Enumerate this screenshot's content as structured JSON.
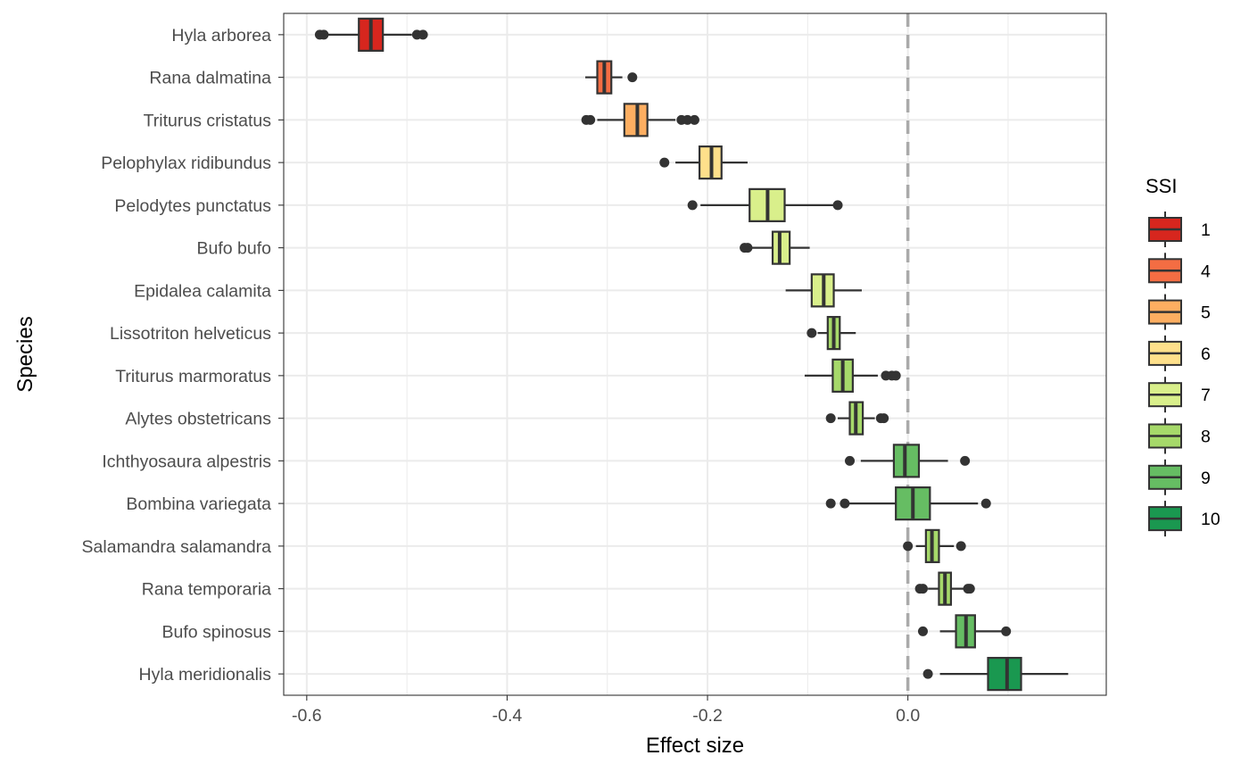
{
  "chart_data": {
    "type": "boxplot",
    "title": "",
    "xlabel": "Effect size",
    "ylabel": "Species",
    "xlim": [
      -0.623,
      0.198
    ],
    "x_ticks": [
      -0.6,
      -0.4,
      -0.2,
      0.0
    ],
    "x_tick_labels": [
      "-0.6",
      "-0.4",
      "-0.2",
      "0.0"
    ],
    "grid": true,
    "reference_line": {
      "x": 0.0,
      "style": "dashed",
      "color": "#aaaaaa"
    },
    "legend": {
      "title": "SSI",
      "position": "right",
      "entries": [
        {
          "label": "1",
          "color": "#d7261e"
        },
        {
          "label": "4",
          "color": "#f46d43"
        },
        {
          "label": "5",
          "color": "#fdae61"
        },
        {
          "label": "6",
          "color": "#fee08b"
        },
        {
          "label": "7",
          "color": "#d9ef8b"
        },
        {
          "label": "8",
          "color": "#a6d96a"
        },
        {
          "label": "9",
          "color": "#66bd63"
        },
        {
          "label": "10",
          "color": "#1a9850"
        }
      ]
    },
    "series": [
      {
        "category": "Hyla meridionalis",
        "ssi": "10",
        "whisker_low": 0.032,
        "q1": 0.08,
        "median": 0.099,
        "q3": 0.113,
        "whisker_high": 0.16,
        "outliers": [
          0.02
        ]
      },
      {
        "category": "Bufo spinosus",
        "ssi": "9",
        "whisker_low": 0.032,
        "q1": 0.048,
        "median": 0.058,
        "q3": 0.067,
        "whisker_high": 0.1,
        "outliers": [
          0.015,
          0.098
        ]
      },
      {
        "category": "Rana temporaria",
        "ssi": "8",
        "whisker_low": 0.02,
        "q1": 0.031,
        "median": 0.037,
        "q3": 0.043,
        "whisker_high": 0.058,
        "outliers": [
          0.012,
          0.015,
          0.06,
          0.062
        ]
      },
      {
        "category": "Salamandra salamandra",
        "ssi": "8",
        "whisker_low": 0.008,
        "q1": 0.018,
        "median": 0.024,
        "q3": 0.031,
        "whisker_high": 0.046,
        "outliers": [
          0.0,
          0.053
        ]
      },
      {
        "category": "Bombina variegata",
        "ssi": "9",
        "whisker_low": -0.06,
        "q1": -0.012,
        "median": 0.005,
        "q3": 0.022,
        "whisker_high": 0.07,
        "outliers": [
          -0.077,
          -0.063,
          0.078
        ]
      },
      {
        "category": "Ichthyosaura alpestris",
        "ssi": "9",
        "whisker_low": -0.047,
        "q1": -0.014,
        "median": -0.003,
        "q3": 0.011,
        "whisker_high": 0.04,
        "outliers": [
          -0.058,
          0.057
        ]
      },
      {
        "category": "Alytes obstetricans",
        "ssi": "8",
        "whisker_low": -0.07,
        "q1": -0.058,
        "median": -0.052,
        "q3": -0.045,
        "whisker_high": -0.033,
        "outliers": [
          -0.077,
          -0.027,
          -0.024
        ]
      },
      {
        "category": "Triturus marmoratus",
        "ssi": "8",
        "whisker_low": -0.103,
        "q1": -0.075,
        "median": -0.065,
        "q3": -0.055,
        "whisker_high": -0.03,
        "outliers": [
          -0.022,
          -0.016,
          -0.012
        ]
      },
      {
        "category": "Lissotriton helveticus",
        "ssi": "8",
        "whisker_low": -0.09,
        "q1": -0.08,
        "median": -0.074,
        "q3": -0.068,
        "whisker_high": -0.052,
        "outliers": [
          -0.096
        ]
      },
      {
        "category": "Epidalea calamita",
        "ssi": "7",
        "whisker_low": -0.122,
        "q1": -0.096,
        "median": -0.084,
        "q3": -0.074,
        "whisker_high": -0.046,
        "outliers": []
      },
      {
        "category": "Bufo bufo",
        "ssi": "7",
        "whisker_low": -0.157,
        "q1": -0.135,
        "median": -0.128,
        "q3": -0.118,
        "whisker_high": -0.098,
        "outliers": [
          -0.163,
          -0.16
        ]
      },
      {
        "category": "Pelodytes punctatus",
        "ssi": "7",
        "whisker_low": -0.207,
        "q1": -0.158,
        "median": -0.14,
        "q3": -0.123,
        "whisker_high": -0.073,
        "outliers": [
          -0.215,
          -0.07
        ]
      },
      {
        "category": "Pelophylax ridibundus",
        "ssi": "6",
        "whisker_low": -0.232,
        "q1": -0.208,
        "median": -0.196,
        "q3": -0.186,
        "whisker_high": -0.16,
        "outliers": [
          -0.243
        ]
      },
      {
        "category": "Triturus cristatus",
        "ssi": "5",
        "whisker_low": -0.31,
        "q1": -0.283,
        "median": -0.27,
        "q3": -0.26,
        "whisker_high": -0.232,
        "outliers": [
          -0.321,
          -0.317,
          -0.226,
          -0.22,
          -0.213
        ]
      },
      {
        "category": "Rana dalmatina",
        "ssi": "4",
        "whisker_low": -0.322,
        "q1": -0.31,
        "median": -0.303,
        "q3": -0.296,
        "whisker_high": -0.285,
        "outliers": [
          -0.275
        ]
      },
      {
        "category": "Hyla arborea",
        "ssi": "1",
        "whisker_low": -0.58,
        "q1": -0.548,
        "median": -0.536,
        "q3": -0.524,
        "whisker_high": -0.495,
        "outliers": [
          -0.587,
          -0.583,
          -0.49,
          -0.484
        ]
      }
    ]
  }
}
